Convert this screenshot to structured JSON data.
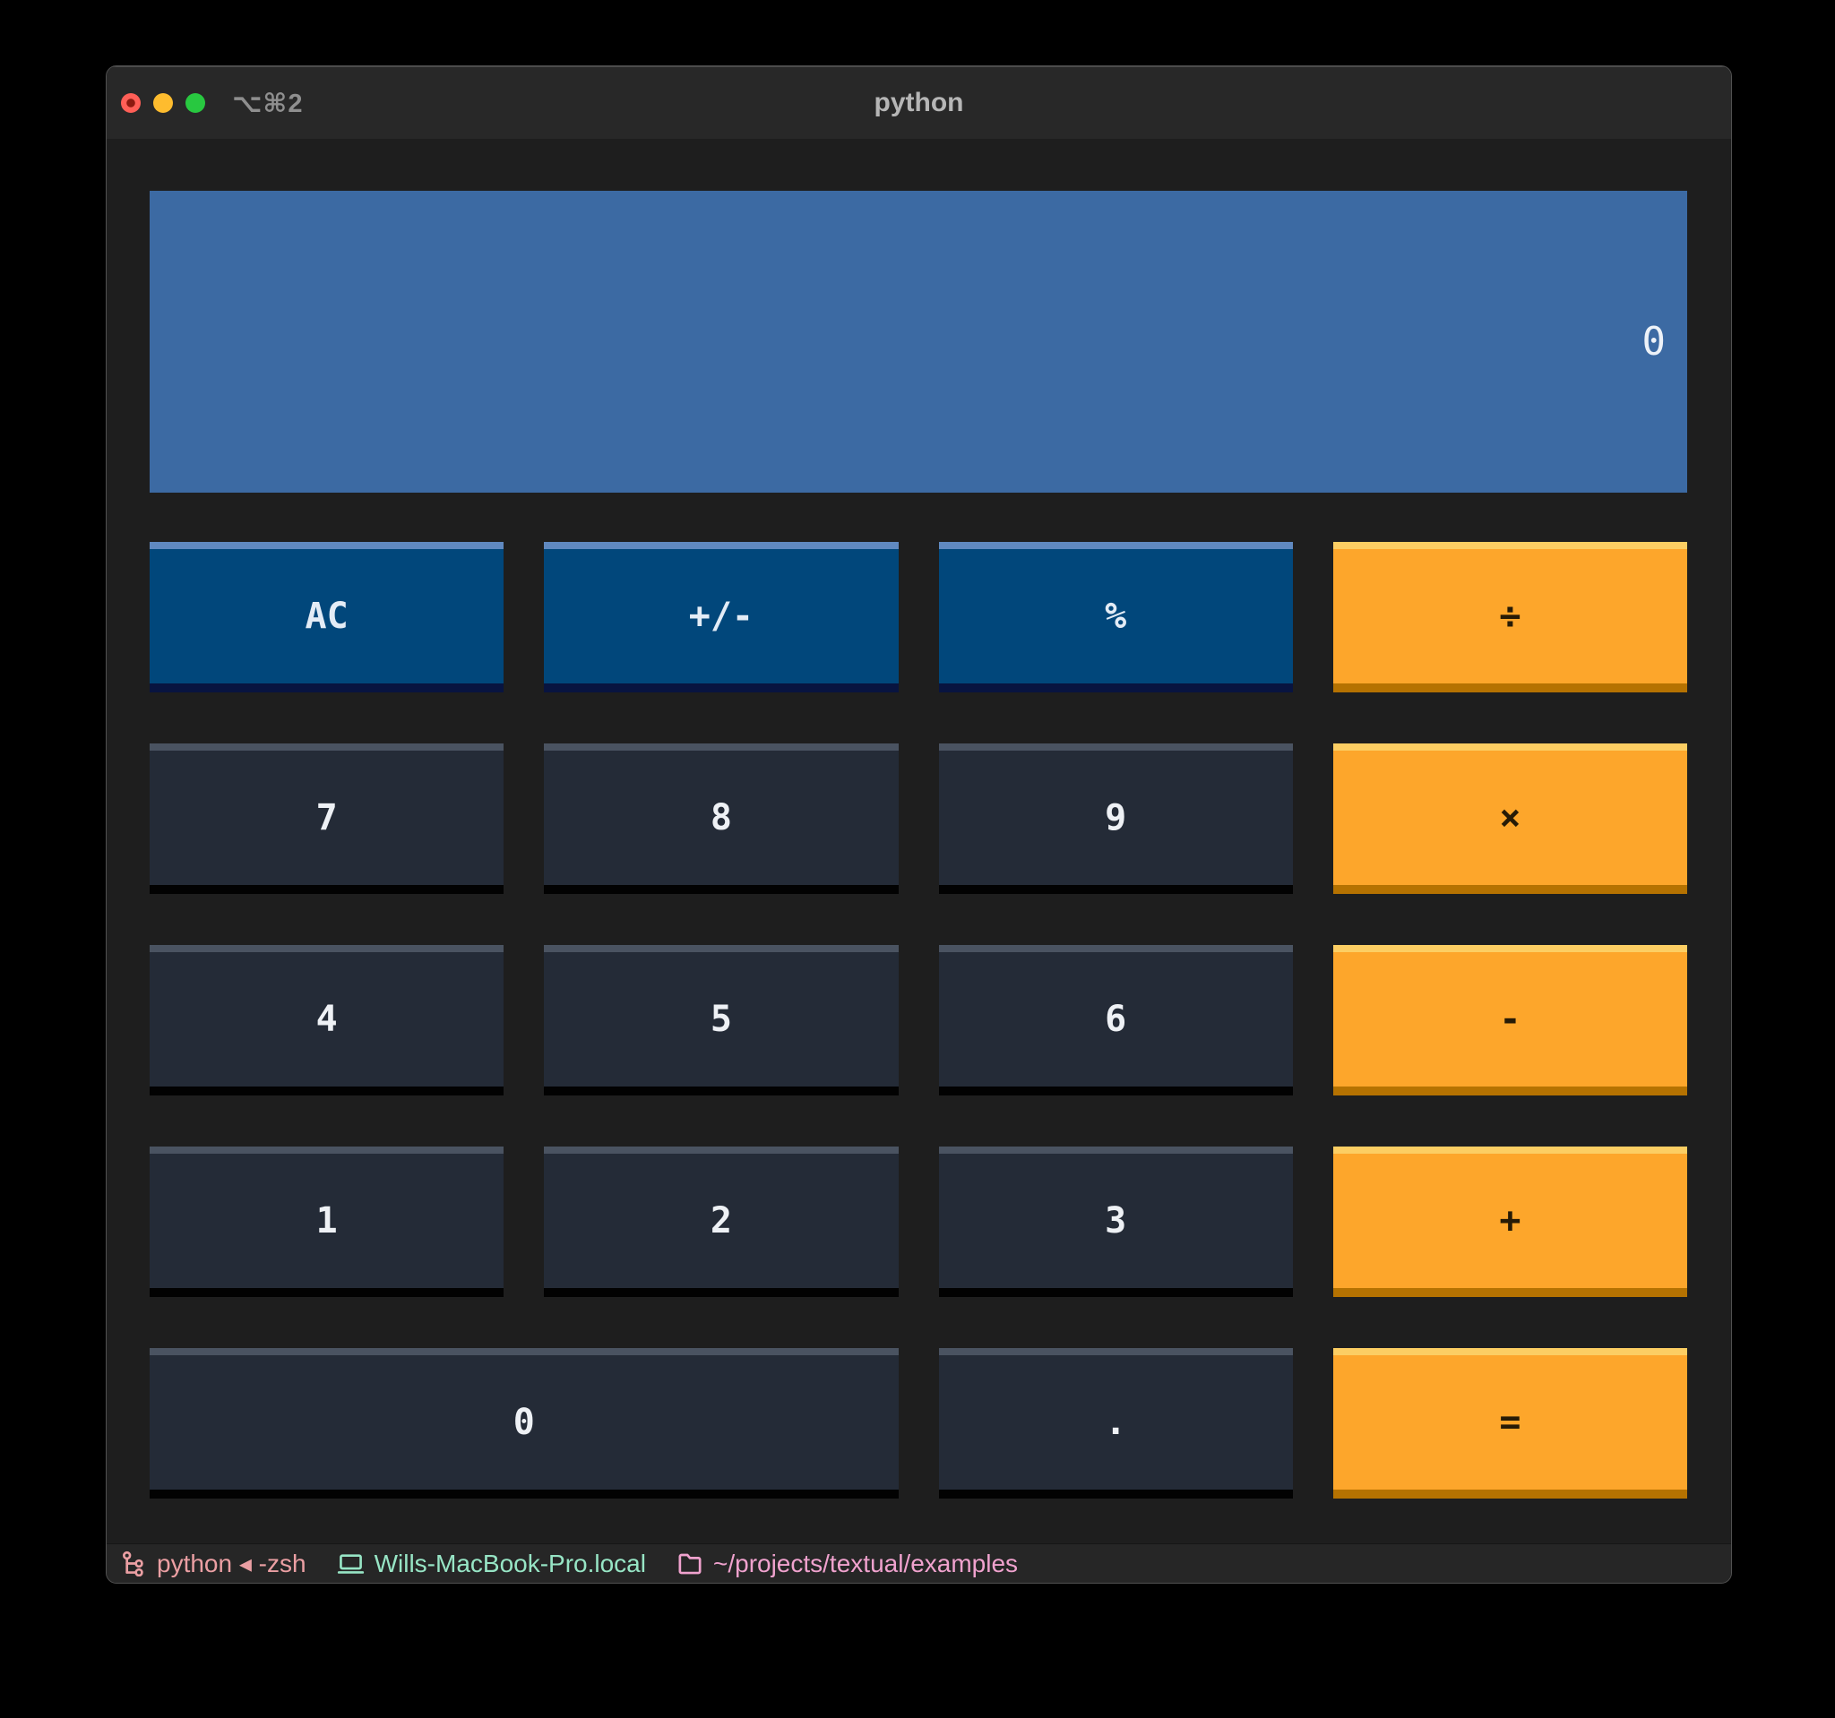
{
  "window": {
    "title": "python",
    "titlebar_shortcut": "⌥⌘2",
    "traffic_lights": [
      "close",
      "minimize",
      "zoom"
    ]
  },
  "calculator": {
    "display": {
      "value": "0"
    },
    "buttons": [
      {
        "id": "clear",
        "label": "AC",
        "variant": "primary"
      },
      {
        "id": "plus-minus",
        "label": "+/-",
        "variant": "primary"
      },
      {
        "id": "percent",
        "label": "%",
        "variant": "primary"
      },
      {
        "id": "divide",
        "label": "÷",
        "variant": "warning"
      },
      {
        "id": "digit-7",
        "label": "7",
        "variant": "number"
      },
      {
        "id": "digit-8",
        "label": "8",
        "variant": "number"
      },
      {
        "id": "digit-9",
        "label": "9",
        "variant": "number"
      },
      {
        "id": "multiply",
        "label": "×",
        "variant": "warning"
      },
      {
        "id": "digit-4",
        "label": "4",
        "variant": "number"
      },
      {
        "id": "digit-5",
        "label": "5",
        "variant": "number"
      },
      {
        "id": "digit-6",
        "label": "6",
        "variant": "number"
      },
      {
        "id": "subtract",
        "label": "-",
        "variant": "warning"
      },
      {
        "id": "digit-1",
        "label": "1",
        "variant": "number"
      },
      {
        "id": "digit-2",
        "label": "2",
        "variant": "number"
      },
      {
        "id": "digit-3",
        "label": "3",
        "variant": "number"
      },
      {
        "id": "add",
        "label": "+",
        "variant": "warning"
      },
      {
        "id": "digit-0",
        "label": "0",
        "variant": "number",
        "span": 2
      },
      {
        "id": "decimal",
        "label": ".",
        "variant": "number"
      },
      {
        "id": "equals",
        "label": "=",
        "variant": "warning"
      }
    ]
  },
  "statusbar": {
    "items": [
      {
        "icon": "process-tree-icon",
        "text": "python ◂ -zsh"
      },
      {
        "icon": "monitor-icon",
        "text": "Wills-MacBook-Pro.local"
      },
      {
        "icon": "folder-icon",
        "text": "~/projects/textual/examples"
      }
    ]
  },
  "colors": {
    "content_bg": "#1e1e1e",
    "chrome_bg": "#282828",
    "display_bg": "#3c6aa3",
    "display_text": "#edf2f8",
    "primary_bg": "#01477b",
    "primary_top": "#6089c0",
    "primary_bottom": "#081440",
    "number_bg": "#242b37",
    "number_top": "#4a5361",
    "number_bottom": "#020202",
    "warning_bg": "#fda62b",
    "warning_top": "#fcce63",
    "warning_bottom": "#b57201",
    "warning_text": "#271b06",
    "traffic_red": "#ff5f57",
    "traffic_yellow": "#febc2e",
    "traffic_green": "#28c840",
    "status_process": "#eb9fa3",
    "status_host": "#97e5c5",
    "status_path": "#f0a2ce"
  }
}
